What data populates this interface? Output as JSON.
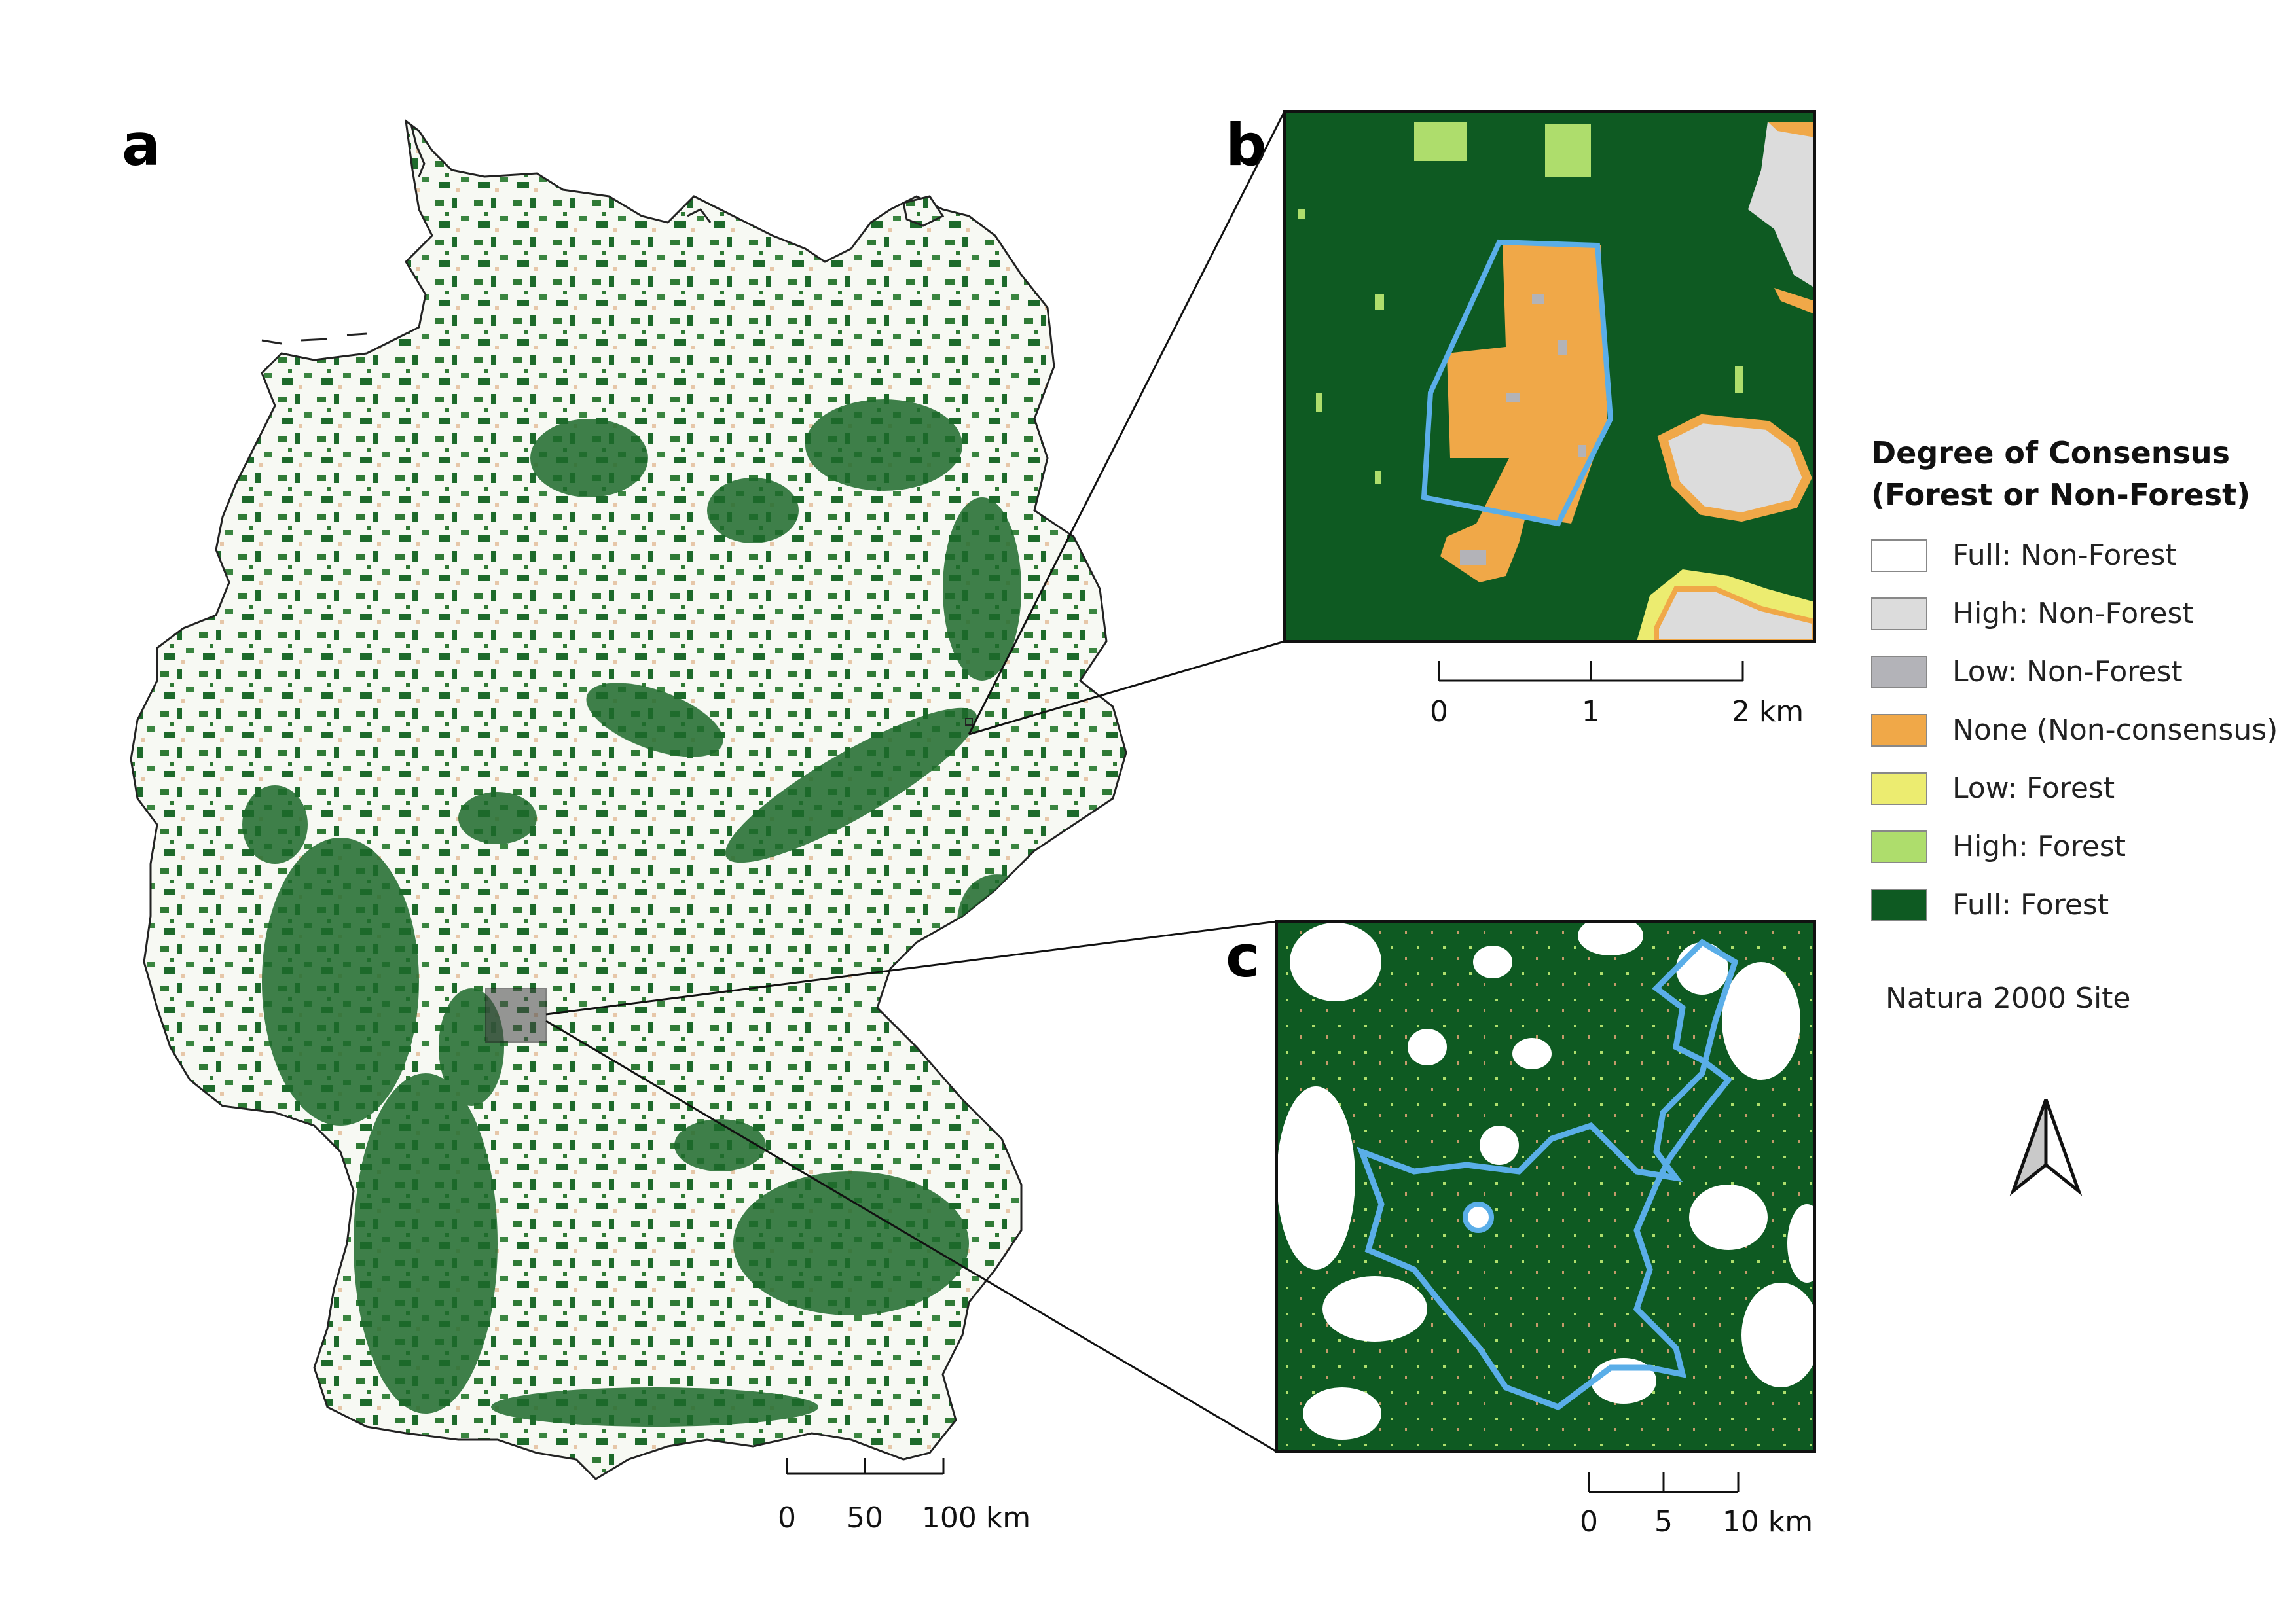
{
  "panels": {
    "a": {
      "label": "a"
    },
    "b": {
      "label": "b"
    },
    "c": {
      "label": "c"
    }
  },
  "scalebars": {
    "a": {
      "ticks": [
        "0",
        "50",
        "100 km"
      ]
    },
    "b": {
      "ticks": [
        "0",
        "1",
        "2 km"
      ]
    },
    "c": {
      "ticks": [
        "0",
        "5",
        "10 km"
      ]
    }
  },
  "legend": {
    "title_line1": "Degree of Consensus",
    "title_line2": "(Forest or Non-Forest)",
    "items": [
      {
        "label": "Full: Non-Forest",
        "color": "#ffffff"
      },
      {
        "label": "High: Non-Forest",
        "color": "#dcdcdc"
      },
      {
        "label": "Low: Non-Forest",
        "color": "#b3b3b8"
      },
      {
        "label": "None (Non-consensus)",
        "color": "#f0a848"
      },
      {
        "label": "Low: Forest",
        "color": "#ecec70"
      },
      {
        "label": "High: Forest",
        "color": "#aedd6c"
      },
      {
        "label": "Full: Forest",
        "color": "#0e5a22"
      }
    ],
    "natura_label": "Natura 2000 Site",
    "natura_color": "#5aaee8"
  },
  "icons": {
    "north_arrow": "north-arrow-icon"
  }
}
